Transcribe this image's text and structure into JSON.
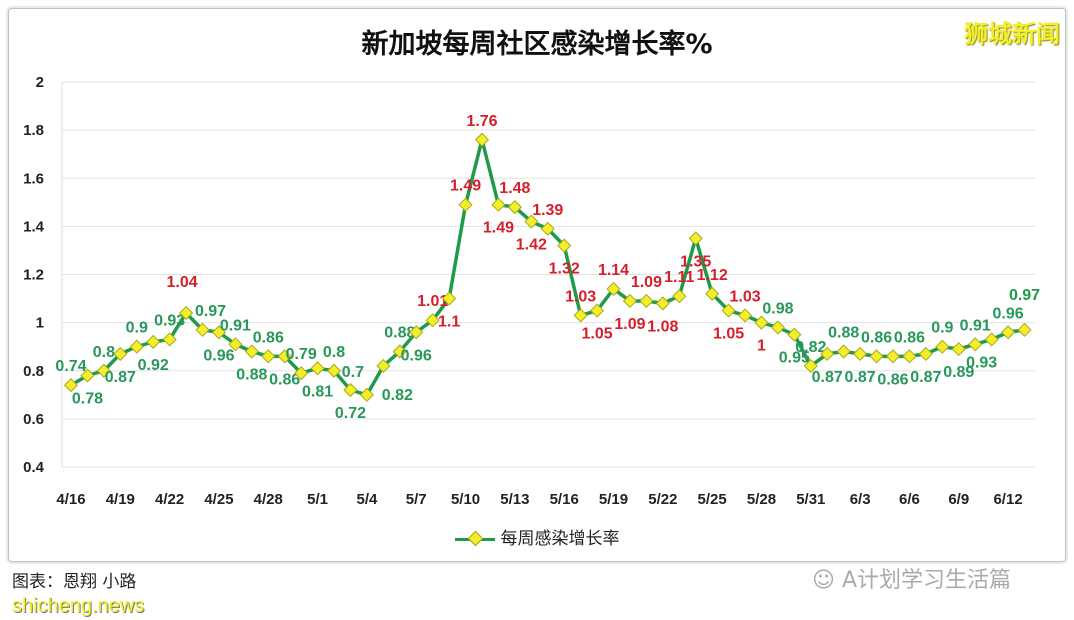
{
  "chart_data": {
    "type": "line",
    "title": "新加坡每周社区感染增长率%",
    "x": [
      "4/16",
      "4/17",
      "4/18",
      "4/19",
      "4/20",
      "4/21",
      "4/22",
      "4/23",
      "4/24",
      "4/25",
      "4/26",
      "4/27",
      "4/28",
      "4/29",
      "4/30",
      "5/1",
      "5/2",
      "5/3",
      "5/4",
      "5/5",
      "5/6",
      "5/7",
      "5/8",
      "5/9",
      "5/10",
      "5/11",
      "5/12",
      "5/13",
      "5/14",
      "5/15",
      "5/16",
      "5/17",
      "5/18",
      "5/19",
      "5/20",
      "5/21",
      "5/22",
      "5/23",
      "5/24",
      "5/25",
      "5/26",
      "5/27",
      "5/28",
      "5/29",
      "5/30",
      "5/31",
      "6/1",
      "6/2",
      "6/3",
      "6/4",
      "6/5",
      "6/6",
      "6/7",
      "6/8",
      "6/9",
      "6/10",
      "6/11",
      "6/12",
      "6/13"
    ],
    "xticks": [
      "4/16",
      "4/19",
      "4/22",
      "4/25",
      "4/28",
      "5/1",
      "5/4",
      "5/7",
      "5/10",
      "5/13",
      "5/16",
      "5/19",
      "5/22",
      "5/25",
      "5/28",
      "5/31",
      "6/3",
      "6/6",
      "6/9",
      "6/12"
    ],
    "series": [
      {
        "name": "每周感染增长率",
        "values": [
          0.74,
          0.78,
          0.8,
          0.87,
          0.9,
          0.92,
          0.93,
          1.04,
          0.97,
          0.96,
          0.91,
          0.88,
          0.86,
          0.86,
          0.79,
          0.81,
          0.8,
          0.72,
          0.7,
          0.82,
          0.88,
          0.96,
          1.01,
          1.1,
          1.49,
          1.76,
          1.49,
          1.48,
          1.42,
          1.39,
          1.32,
          1.03,
          1.05,
          1.14,
          1.09,
          1.09,
          1.08,
          1.11,
          1.35,
          1.12,
          1.05,
          1.03,
          1,
          0.98,
          0.95,
          0.82,
          0.87,
          0.88,
          0.87,
          0.86,
          0.86,
          0.86,
          0.87,
          0.9,
          0.89,
          0.91,
          0.93,
          0.96,
          0.97
        ]
      }
    ],
    "ylim": [
      0.4,
      2
    ],
    "yticks": [
      "0.4",
      "0.6",
      "0.8",
      "1",
      "1.2",
      "1.4",
      "1.6",
      "1.8",
      "2"
    ],
    "grid": true,
    "legend_position": "bottom",
    "colors": {
      "line": "#1e9a48",
      "marker": "#f2ee2a",
      "label_high": "#d4202c",
      "label_low": "#27985a"
    }
  },
  "brand": "狮城新闻",
  "credit": "图表：恩翔 小路",
  "watermark": "shicheng.news",
  "wechat": "A计划学习生活篇"
}
